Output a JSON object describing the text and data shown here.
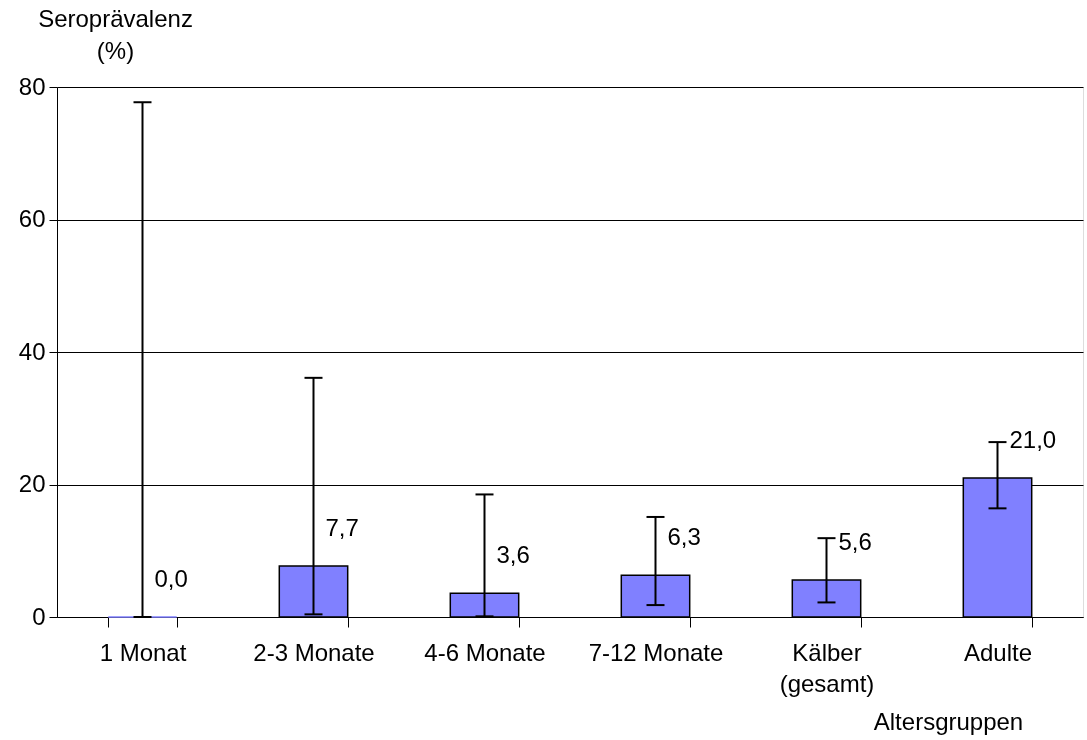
{
  "chart_data": {
    "type": "bar",
    "ylabel": "Seroprävalenz\n(%)",
    "xlabel": "Altersgruppen",
    "categories": [
      "1 Monat",
      "2-3 Monate",
      "4-6 Monate",
      "7-12 Monate",
      "Kälber\n(gesamt)",
      "Adulte"
    ],
    "values": [
      0.0,
      7.7,
      3.6,
      6.3,
      5.6,
      21.0
    ],
    "color": "#8080ff",
    "errors": [
      [
        0,
        77.7
      ],
      [
        0.4,
        36.1
      ],
      [
        0.1,
        18.5
      ],
      [
        1.8,
        15.1
      ],
      [
        2.2,
        11.9
      ],
      [
        16.4,
        26.4
      ]
    ],
    "value_labels": [
      "0,0",
      "7,7",
      "3,6",
      "6,3",
      "5,6",
      "21,0"
    ],
    "ylim": [
      0,
      80
    ],
    "yticks": [
      0,
      20,
      40,
      60,
      80
    ],
    "grid": "y"
  }
}
